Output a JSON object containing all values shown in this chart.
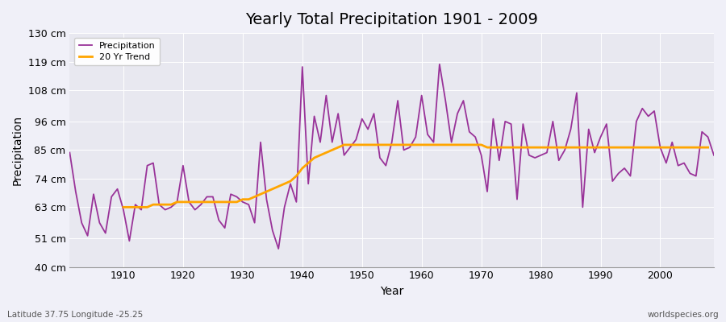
{
  "title": "Yearly Total Precipitation 1901 - 2009",
  "xlabel": "Year",
  "ylabel": "Precipitation",
  "subtitle": "Latitude 37.75 Longitude -25.25",
  "watermark": "worldspecies.org",
  "precipitation_line_color": "#993399",
  "trend_line_color": "#FFA500",
  "background_color": "#f0f0f8",
  "plot_bg_color": "#e8e8f0",
  "ylim": [
    40,
    130
  ],
  "yticks": [
    40,
    51,
    63,
    74,
    85,
    96,
    108,
    119,
    130
  ],
  "ytick_labels": [
    "40 cm",
    "51 cm",
    "63 cm",
    "74 cm",
    "85 cm",
    "96 cm",
    "108 cm",
    "119 cm",
    "130 cm"
  ],
  "years": [
    1901,
    1902,
    1903,
    1904,
    1905,
    1906,
    1907,
    1908,
    1909,
    1910,
    1911,
    1912,
    1913,
    1914,
    1915,
    1916,
    1917,
    1918,
    1919,
    1920,
    1921,
    1922,
    1923,
    1924,
    1925,
    1926,
    1927,
    1928,
    1929,
    1930,
    1931,
    1932,
    1933,
    1934,
    1935,
    1936,
    1937,
    1938,
    1939,
    1940,
    1941,
    1942,
    1943,
    1944,
    1945,
    1946,
    1947,
    1948,
    1949,
    1950,
    1951,
    1952,
    1953,
    1954,
    1955,
    1956,
    1957,
    1958,
    1959,
    1960,
    1961,
    1962,
    1963,
    1964,
    1965,
    1966,
    1967,
    1968,
    1969,
    1970,
    1971,
    1972,
    1973,
    1974,
    1975,
    1976,
    1977,
    1978,
    1979,
    1980,
    1981,
    1982,
    1983,
    1984,
    1985,
    1986,
    1987,
    1988,
    1989,
    1990,
    1991,
    1992,
    1993,
    1994,
    1995,
    1996,
    1997,
    1998,
    1999,
    2000,
    2001,
    2002,
    2003,
    2004,
    2005,
    2006,
    2007,
    2008,
    2009
  ],
  "precipitation": [
    84,
    69,
    57,
    52,
    68,
    57,
    53,
    67,
    70,
    62,
    50,
    64,
    62,
    79,
    80,
    64,
    62,
    63,
    65,
    79,
    65,
    62,
    64,
    67,
    67,
    58,
    55,
    68,
    67,
    65,
    64,
    57,
    88,
    66,
    54,
    47,
    63,
    72,
    65,
    117,
    72,
    98,
    88,
    106,
    88,
    99,
    83,
    86,
    89,
    97,
    93,
    99,
    82,
    79,
    88,
    104,
    85,
    86,
    90,
    106,
    91,
    88,
    118,
    104,
    88,
    99,
    104,
    92,
    90,
    83,
    69,
    97,
    81,
    96,
    95,
    66,
    95,
    83,
    82,
    83,
    84,
    96,
    81,
    85,
    93,
    107,
    63,
    93,
    84,
    90,
    95,
    73,
    76,
    78,
    75,
    96,
    101,
    98,
    100,
    86,
    80,
    88,
    79,
    80,
    76,
    75,
    92,
    90,
    83
  ],
  "trend": [
    null,
    null,
    null,
    null,
    null,
    null,
    null,
    null,
    null,
    63,
    63,
    63,
    63,
    63,
    64,
    64,
    64,
    64,
    65,
    65,
    65,
    65,
    65,
    65,
    65,
    65,
    65,
    65,
    65,
    66,
    66,
    67,
    68,
    69,
    70,
    71,
    72,
    73,
    75,
    78,
    80,
    82,
    83,
    84,
    85,
    86,
    87,
    87,
    87,
    87,
    87,
    87,
    87,
    87,
    87,
    87,
    87,
    87,
    87,
    87,
    87,
    87,
    87,
    87,
    87,
    87,
    87,
    87,
    87,
    87,
    86,
    86,
    86,
    86,
    86,
    86,
    86,
    86,
    86,
    86,
    86,
    86,
    86,
    86,
    86,
    86,
    86,
    86,
    86,
    86,
    86,
    86,
    86,
    86,
    86,
    86,
    86,
    86,
    86,
    86,
    86,
    86,
    86,
    86,
    86,
    86,
    86,
    86,
    null
  ]
}
